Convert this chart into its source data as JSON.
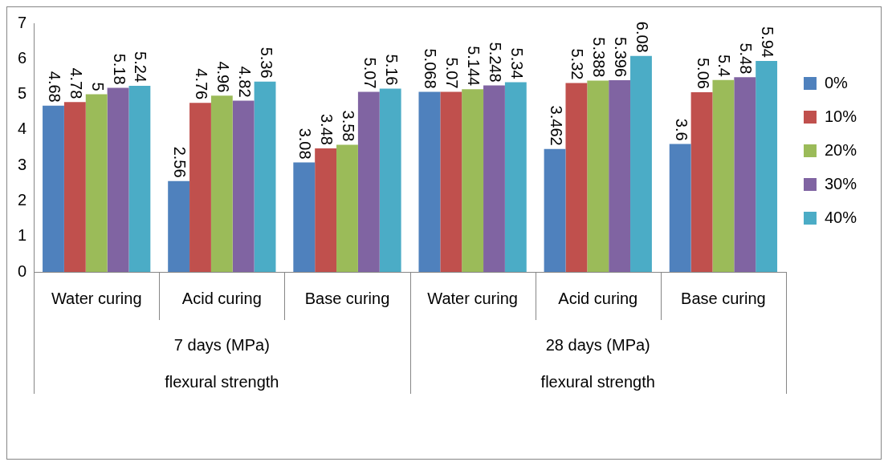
{
  "chart_data": {
    "type": "bar",
    "categories": [
      "Water curing",
      "Acid curing",
      "Base curing",
      "Water curing",
      "Acid curing",
      "Base curing"
    ],
    "series": [
      {
        "name": "0%",
        "color": "#4f81bd",
        "values": [
          4.68,
          2.56,
          3.08,
          5.068,
          3.462,
          3.6
        ]
      },
      {
        "name": "10%",
        "color": "#c0504d",
        "values": [
          4.78,
          4.76,
          3.48,
          5.07,
          5.32,
          5.06
        ]
      },
      {
        "name": "20%",
        "color": "#9bbb59",
        "values": [
          5,
          4.96,
          3.58,
          5.144,
          5.388,
          5.4
        ]
      },
      {
        "name": "30%",
        "color": "#8064a2",
        "values": [
          5.18,
          4.82,
          5.07,
          5.248,
          5.396,
          5.48
        ]
      },
      {
        "name": "40%",
        "color": "#4bacc6",
        "values": [
          5.24,
          5.36,
          5.16,
          5.34,
          6.08,
          5.94
        ]
      }
    ],
    "annotations": [
      "7 days (MPa)",
      "28 days (MPa)",
      "flexural strength",
      "flexural strength"
    ],
    "ylim": [
      0,
      7
    ],
    "yticks": [
      0,
      1,
      2,
      3,
      4,
      5,
      6,
      7
    ],
    "grid": false,
    "legend": "right",
    "data_labels": true
  }
}
